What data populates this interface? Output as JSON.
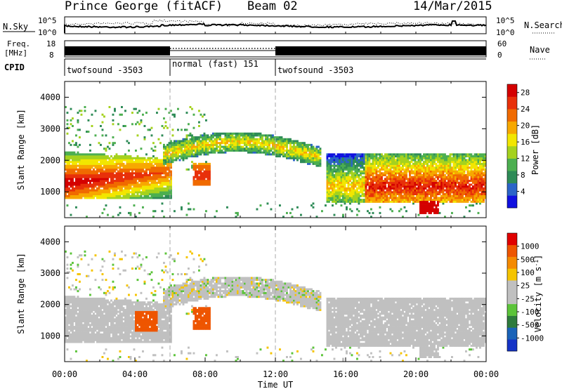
{
  "header": {
    "station": "Prince George (fitACF)",
    "beam": "Beam 02",
    "date": "14/Mar/2015"
  },
  "strips": {
    "nsky_label": "N.Sky",
    "nsky_ticks": [
      "10^5",
      "10^0"
    ],
    "nsearch_label": "N.Search",
    "nsearch_ticks": [
      "10^5",
      "10^0"
    ],
    "freq_label": "Freq.",
    "freq_unit": "[MHz]",
    "freq_ticks": [
      "18",
      "8"
    ],
    "nave_label": "Nave",
    "nave_ticks": [
      "60",
      "0"
    ],
    "cpid_label": "CPID",
    "cpid_segments": [
      {
        "label": "twofsound -3503",
        "start_h": 0,
        "end_h": 6
      },
      {
        "label": "normal (fast) 151",
        "start_h": 6,
        "end_h": 12
      },
      {
        "label": "twofsound -3503",
        "start_h": 12,
        "end_h": 24
      }
    ]
  },
  "chart_data": [
    {
      "type": "heatmap",
      "title": "Power",
      "xlabel": "Time UT",
      "ylabel": "Slant Range [km]",
      "xlim": [
        0,
        24
      ],
      "ylim": [
        180,
        4500
      ],
      "xticks": [
        "00:00",
        "04:00",
        "08:00",
        "12:00",
        "16:00",
        "20:00",
        "00:00"
      ],
      "yticks": [
        1000,
        2000,
        3000,
        4000
      ],
      "colorbar": {
        "label": "Power [dB]",
        "ticks": [
          "4",
          "8",
          "12",
          "16",
          "20",
          "24",
          "28"
        ],
        "range": [
          0,
          30
        ],
        "colors": [
          "#1010e0",
          "#2b64c8",
          "#2e8b57",
          "#4caf50",
          "#a5d21e",
          "#f2e600",
          "#f7a800",
          "#f06a00",
          "#e8300a",
          "#d40000"
        ]
      }
    },
    {
      "type": "heatmap",
      "title": "Velocity",
      "xlabel": "Time UT",
      "ylabel": "Slant Range [km]",
      "xlim": [
        0,
        24
      ],
      "ylim": [
        180,
        4500
      ],
      "xticks": [
        "00:00",
        "04:00",
        "08:00",
        "12:00",
        "16:00",
        "20:00",
        "00:00"
      ],
      "yticks": [
        1000,
        2000,
        3000,
        4000
      ],
      "colorbar": {
        "label": "Velocity [m s^-1]",
        "ticks": [
          "1000",
          "500",
          "100",
          "25",
          "-25",
          "-100",
          "-500",
          "-1000"
        ],
        "range": [
          -1000,
          1000
        ],
        "colors": [
          "#1533c6",
          "#1a63b8",
          "#2e7b3d",
          "#5cc43a",
          "#c0c0c0",
          "#c0c0c0",
          "#f5c400",
          "#f58a00",
          "#ee5500",
          "#e00000"
        ]
      }
    }
  ],
  "x_axis": {
    "label": "Time UT"
  }
}
